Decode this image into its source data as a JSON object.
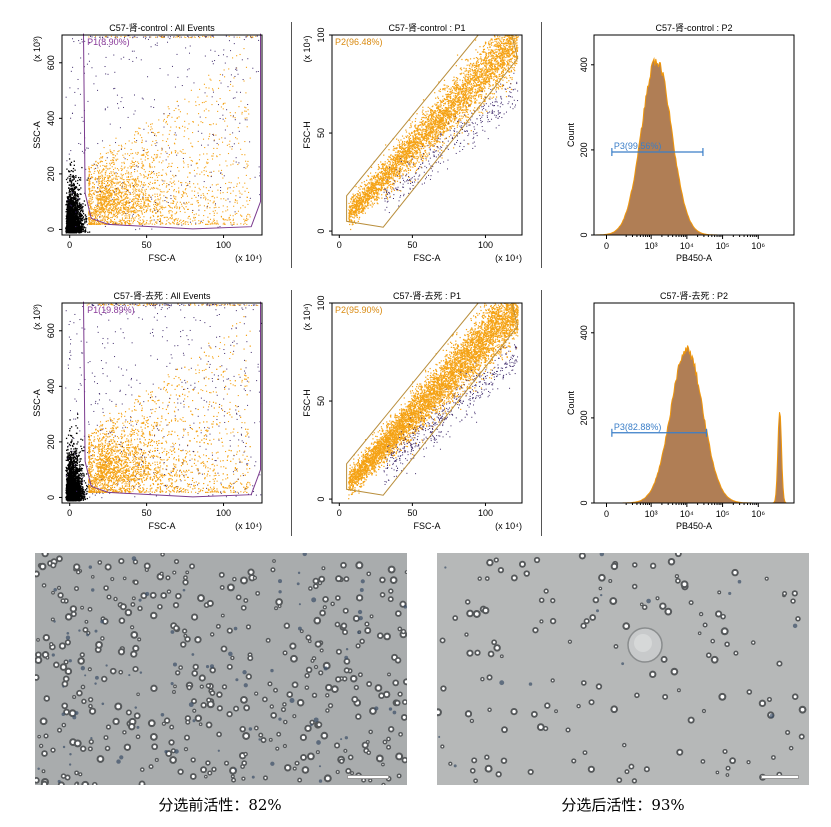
{
  "colors": {
    "ungated": "#000000",
    "gated": "#f5a214",
    "outside": "#3f2a6b",
    "gate": "#b98e3c",
    "p1gate": "#7b3a8e",
    "hist": "#b07e55",
    "histline": "#f0960a",
    "marker": "#3a7ec8",
    "label_p1": "#8a3a9a",
    "label_p2": "#d98a10"
  },
  "captions": {
    "before": "分选前活性：82%",
    "after": "分选后活性：93%"
  },
  "chart_data": [
    {
      "type": "scatter",
      "title": "C57-肾-control : All Events",
      "xlabel": "FSC-A",
      "ylabel": "SSC-A",
      "xunit": "(x 10⁴)",
      "yunit": "(x 10³)",
      "xlim": [
        -5,
        125
      ],
      "ylim": [
        -20,
        700
      ],
      "xticks": [
        0,
        50,
        100
      ],
      "yticks": [
        0,
        200,
        400,
        600
      ],
      "gate": {
        "name": "P1",
        "label": "P1(8.90%)",
        "percent": 8.9
      },
      "density": 0.55
    },
    {
      "type": "scatter",
      "title": "C57-肾-control : P1",
      "xlabel": "FSC-A",
      "ylabel": "FSC-H",
      "xunit": "(x 10⁴)",
      "yunit": "(x 10⁴)",
      "xlim": [
        -5,
        125
      ],
      "ylim": [
        -2,
        100
      ],
      "xticks": [
        0,
        50,
        100
      ],
      "yticks": [
        0,
        50,
        100
      ],
      "gate": {
        "name": "P2",
        "label": "P2(96.48%)",
        "percent": 96.48
      },
      "density": 0.6
    },
    {
      "type": "histogram",
      "title": "C57-肾-control : P2",
      "xlabel": "PB450-A",
      "ylabel": "Count",
      "xticklabels": [
        "0",
        "10³",
        "10⁴",
        "10⁵",
        "10⁶"
      ],
      "yticks": [
        0,
        200,
        400
      ],
      "ylim": [
        0,
        470
      ],
      "peaks": [
        {
          "pos": 1.15,
          "height": 410,
          "width": 0.42
        }
      ],
      "gate": {
        "name": "P3",
        "label": "P3(99.56%)",
        "percent": 99.56,
        "from": -0.1,
        "to": 2.45,
        "level": 195
      }
    },
    {
      "type": "scatter",
      "title": "C57-肾-去死 : All Events",
      "xlabel": "FSC-A",
      "ylabel": "SSC-A",
      "xunit": "(x 10⁴)",
      "yunit": "(x 10³)",
      "xlim": [
        -5,
        125
      ],
      "ylim": [
        -20,
        700
      ],
      "xticks": [
        0,
        50,
        100
      ],
      "yticks": [
        0,
        200,
        400,
        600
      ],
      "gate": {
        "name": "P1",
        "label": "P1(19.89%)",
        "percent": 19.89
      },
      "density": 1.0
    },
    {
      "type": "scatter",
      "title": "C57-肾-去死 : P1",
      "xlabel": "FSC-A",
      "ylabel": "FSC-H",
      "xunit": "(x 10⁴)",
      "yunit": "(x 10⁴)",
      "xlim": [
        -5,
        125
      ],
      "ylim": [
        -2,
        100
      ],
      "xticks": [
        0,
        50,
        100
      ],
      "yticks": [
        0,
        50,
        100
      ],
      "gate": {
        "name": "P2",
        "label": "P2(95.90%)",
        "percent": 95.9
      },
      "density": 1.0
    },
    {
      "type": "histogram",
      "title": "C57-肾-去死 : P2",
      "xlabel": "PB450-A",
      "ylabel": "Count",
      "xticklabels": [
        "0",
        "10³",
        "10⁴",
        "10⁵",
        "10⁶"
      ],
      "yticks": [
        0,
        200,
        400
      ],
      "ylim": [
        0,
        470
      ],
      "peaks": [
        {
          "pos": 2.0,
          "height": 360,
          "width": 0.45
        },
        {
          "pos": 4.6,
          "height": 215,
          "width": 0.05
        }
      ],
      "gate": {
        "name": "P3",
        "label": "P3(82.88%)",
        "percent": 82.88,
        "from": -0.1,
        "to": 2.55,
        "level": 165
      }
    }
  ]
}
